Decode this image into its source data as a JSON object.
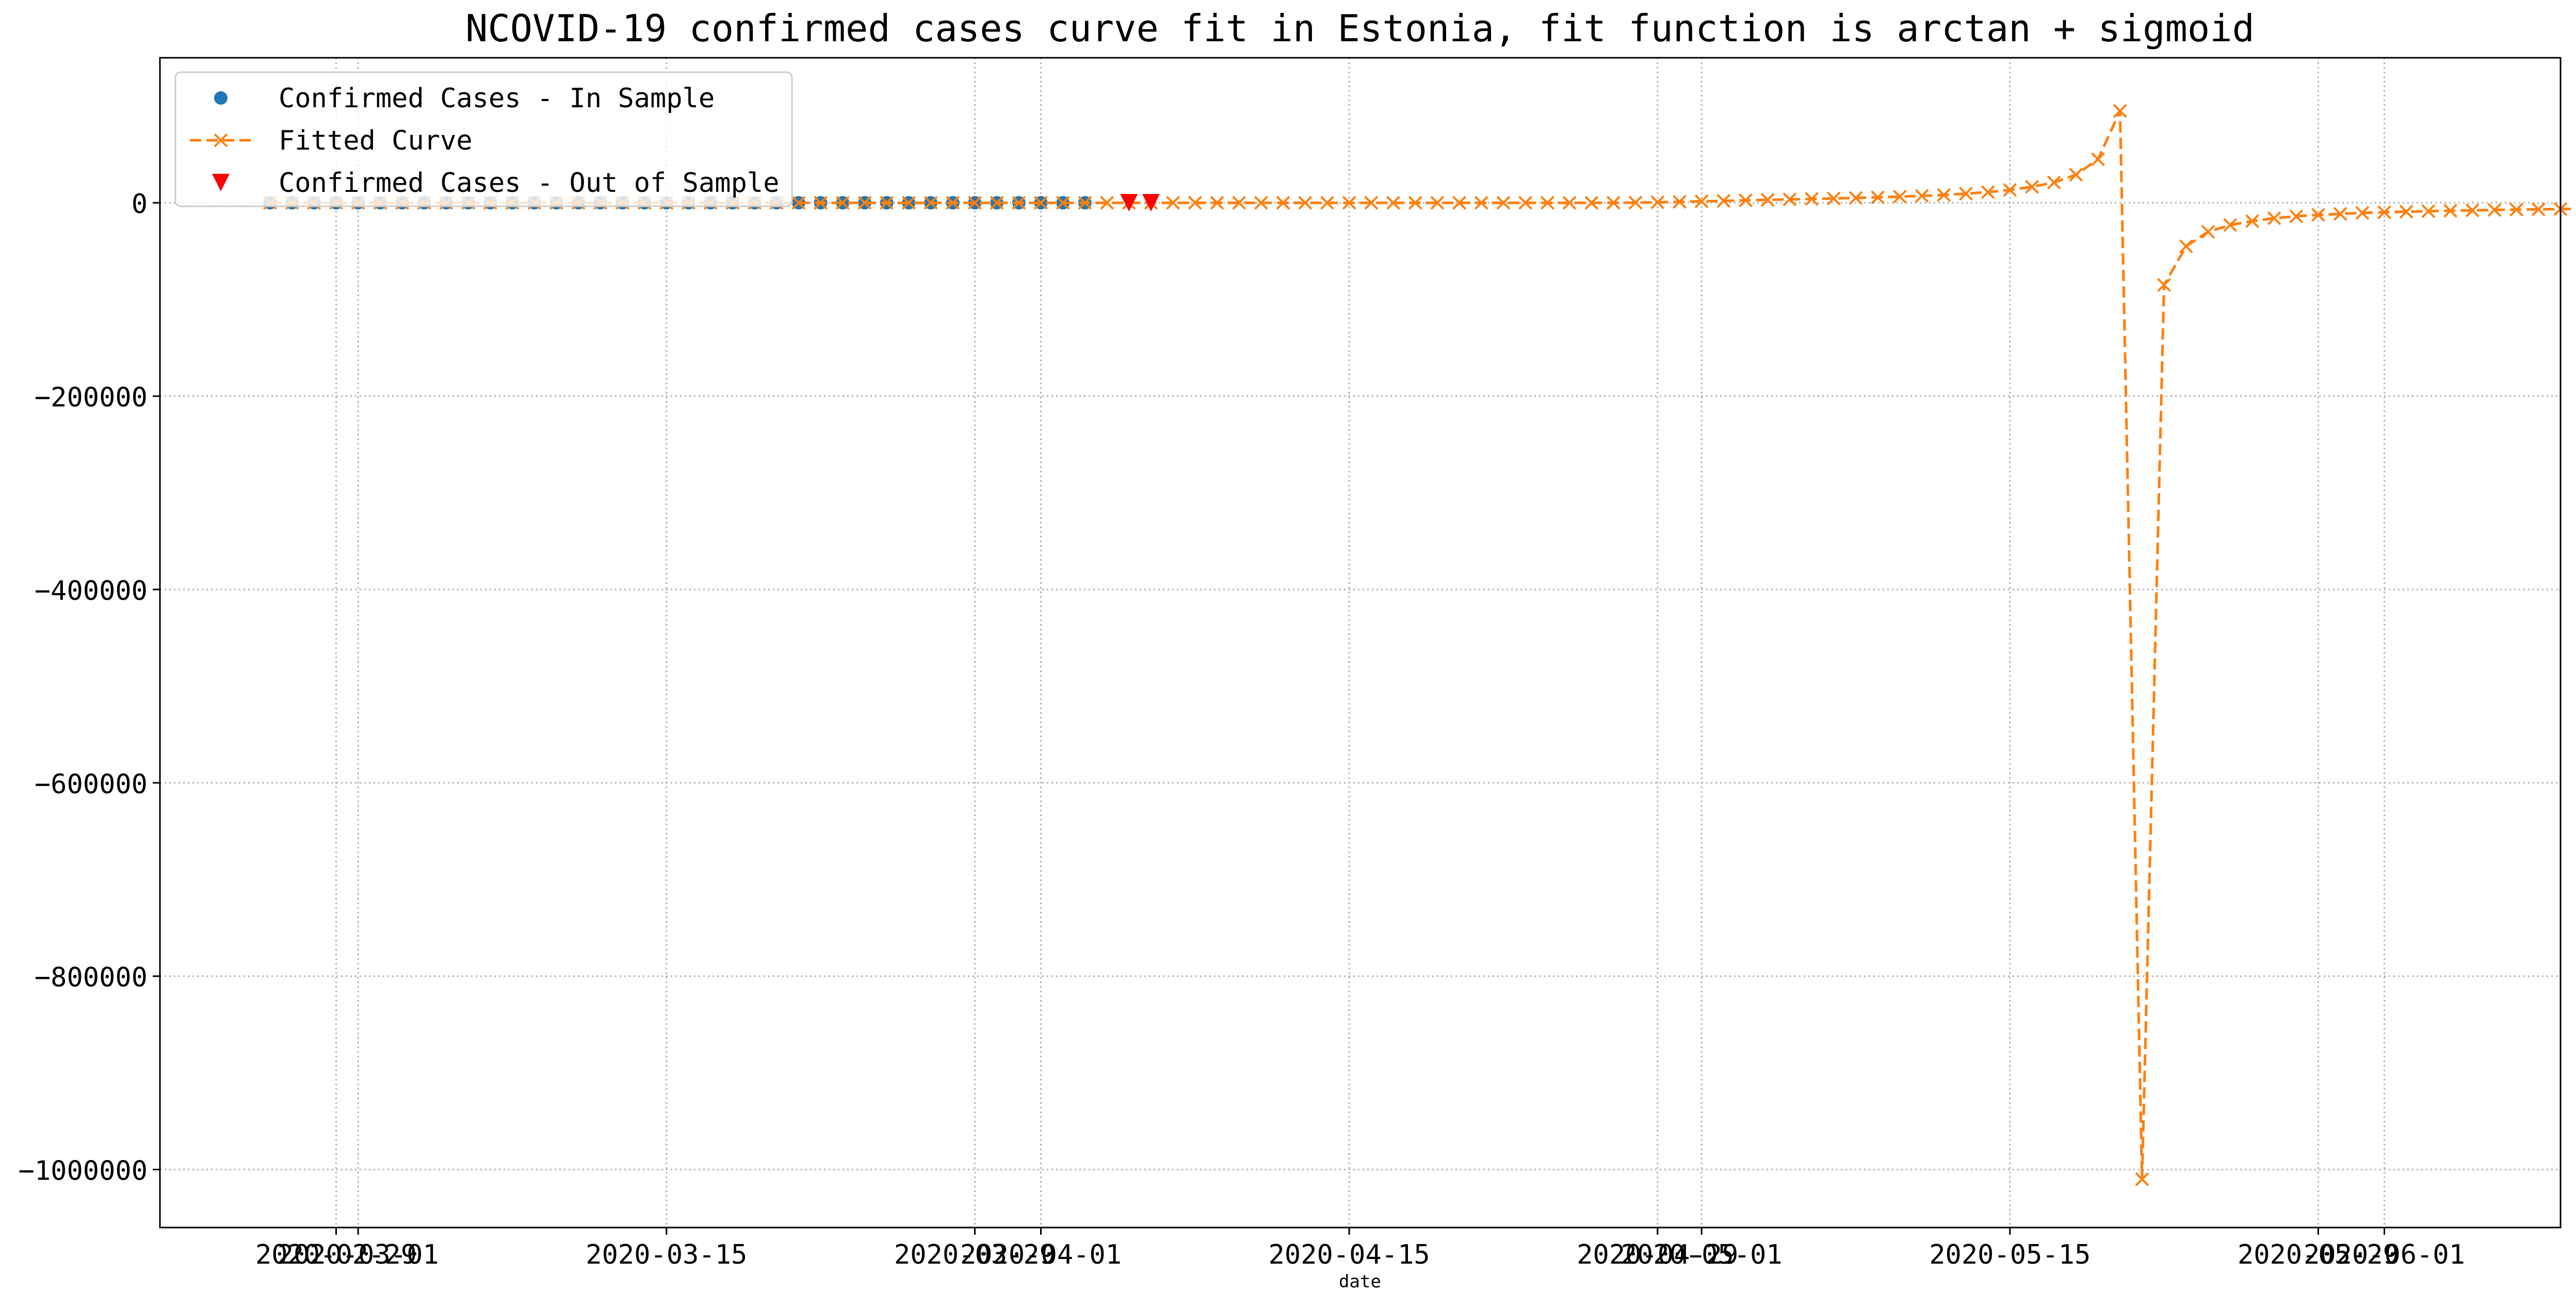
{
  "chart_data": {
    "type": "line",
    "title": "NCOVID-19 confirmed cases curve fit in Estonia, fit function is arctan + sigmoid",
    "xlabel": "date",
    "ylabel": "",
    "ylim": [
      -1060000,
      150000
    ],
    "xlim": [
      "2020-02-21",
      "2020-06-09"
    ],
    "grid": true,
    "grid_style": "dotted",
    "legend_position": "top-left",
    "x_ticks": [
      {
        "date": "2020-02-29",
        "label": "2020-02-29"
      },
      {
        "date": "2020-03-01",
        "label": "2020-03-01"
      },
      {
        "date": "2020-03-15",
        "label": "2020-03-15"
      },
      {
        "date": "2020-03-29",
        "label": "2020-03-29"
      },
      {
        "date": "2020-04-01",
        "label": "2020-04-01"
      },
      {
        "date": "2020-04-15",
        "label": "2020-04-15"
      },
      {
        "date": "2020-04-29",
        "label": "2020-04-29"
      },
      {
        "date": "2020-05-01",
        "label": "2020-05-01"
      },
      {
        "date": "2020-05-15",
        "label": "2020-05-15"
      },
      {
        "date": "2020-05-29",
        "label": "2020-05-29"
      },
      {
        "date": "2020-06-01",
        "label": "2020-06-01"
      }
    ],
    "y_ticks": [
      {
        "value": 0,
        "label": "0"
      },
      {
        "value": -200000,
        "label": "−200000"
      },
      {
        "value": -400000,
        "label": "−400000"
      },
      {
        "value": -600000,
        "label": "−600000"
      },
      {
        "value": -800000,
        "label": "−800000"
      },
      {
        "value": -1000000,
        "label": "−1000000"
      }
    ],
    "series": [
      {
        "name": "Confirmed Cases - In Sample",
        "style": "scatter-circle",
        "color": "#1f77b4",
        "x_start": "2020-02-26",
        "x_end": "2020-04-04",
        "values": [
          0,
          0,
          0,
          0,
          0,
          0,
          0,
          0,
          0,
          0,
          0,
          0,
          0,
          0,
          0,
          0,
          0,
          0,
          0,
          0,
          0,
          0,
          0,
          0,
          0,
          0,
          0,
          0,
          0,
          0,
          0,
          0,
          0,
          0,
          0,
          0,
          0,
          0
        ]
      },
      {
        "name": "Fitted Curve",
        "style": "dashed-x",
        "color": "#ff7f0e",
        "x_start": "2020-02-26",
        "x_end": "2020-06-05",
        "values": [
          0,
          0,
          0,
          0,
          0,
          0,
          0,
          0,
          0,
          0,
          0,
          0,
          0,
          0,
          0,
          0,
          0,
          0,
          0,
          0,
          0,
          0,
          0,
          0,
          0,
          0,
          0,
          0,
          0,
          0,
          0,
          0,
          0,
          0,
          0,
          0,
          0,
          0,
          0,
          0,
          0,
          0,
          0,
          0,
          0,
          0,
          0,
          0,
          0,
          0,
          0,
          0,
          0,
          0,
          0,
          0,
          0,
          0,
          0,
          0,
          0,
          0,
          200,
          500,
          1000,
          1500,
          2000,
          2500,
          3000,
          3500,
          4000,
          4500,
          5000,
          5600,
          6300,
          7100,
          8100,
          9400,
          11000,
          13300,
          16500,
          21000,
          29000,
          45000,
          95000,
          -1010000,
          -85000,
          -45000,
          -30000,
          -23000,
          -19000,
          -16000,
          -14000,
          -12500,
          -11500,
          -10500,
          -9800,
          -9200,
          -8700,
          -8200,
          -7800,
          -7400,
          -7100,
          -6800,
          -6500,
          -6300,
          -6100,
          -5900,
          -5700,
          -5500,
          -5300
        ]
      },
      {
        "name": "Confirmed Cases - Out of Sample",
        "style": "scatter-triangle",
        "color": "#ff0000",
        "x_start": "2020-04-05",
        "x_end": "2020-04-06",
        "values": [
          0,
          0
        ]
      }
    ]
  }
}
